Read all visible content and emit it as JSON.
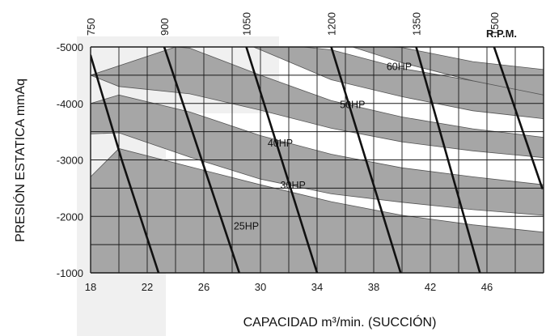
{
  "chart_data": {
    "type": "line",
    "xlabel": "CAPACIDAD m³/min. (SUCCIÓN)",
    "ylabel": "PRESIÓN ESTATICA mmAq",
    "xlim": [
      18,
      50
    ],
    "ylim": [
      -1000,
      -5000
    ],
    "x_ticks": [
      18,
      22,
      26,
      30,
      34,
      38,
      42,
      46
    ],
    "x_tick_labels": [
      "18",
      "22",
      "26",
      "30",
      "34",
      "38",
      "42",
      "46"
    ],
    "y_ticks": [
      -1000,
      -2000,
      -3000,
      -4000,
      -5000
    ],
    "y_tick_labels": [
      "-1000",
      "-2000",
      "-3000",
      "-4000",
      "-5000"
    ],
    "rpm_label": "R.P.M.",
    "rpm_series": [
      {
        "name": "750",
        "points": [
          [
            18.0,
            -4850
          ],
          [
            20.2,
            -3000
          ],
          [
            22.8,
            -1000
          ]
        ]
      },
      {
        "name": "900",
        "points": [
          [
            23.2,
            -5000
          ],
          [
            28.5,
            -1000
          ]
        ]
      },
      {
        "name": "1050",
        "points": [
          [
            29.0,
            -5000
          ],
          [
            34.0,
            -1000
          ]
        ]
      },
      {
        "name": "1200",
        "points": [
          [
            35.0,
            -5000
          ],
          [
            39.9,
            -1000
          ]
        ]
      },
      {
        "name": "1350",
        "points": [
          [
            41.0,
            -5000
          ],
          [
            45.5,
            -1000
          ]
        ]
      },
      {
        "name": "1500",
        "points": [
          [
            46.5,
            -5000
          ],
          [
            49.9,
            -2500
          ]
        ]
      }
    ],
    "hp_bands": [
      {
        "name": "25HP",
        "label_at": [
          29.0,
          -1770
        ],
        "upper": [
          [
            18.0,
            -2700
          ],
          [
            20.0,
            -3200
          ],
          [
            25.0,
            -2880
          ],
          [
            30.0,
            -2560
          ],
          [
            35.0,
            -2260
          ],
          [
            40.0,
            -2020
          ],
          [
            45.0,
            -1850
          ],
          [
            50.0,
            -1720
          ]
        ],
        "lower": [
          [
            18.0,
            -1000
          ],
          [
            50.0,
            -1000
          ]
        ]
      },
      {
        "name": "30HP",
        "label_at": [
          32.3,
          -2490
        ],
        "upper": [
          [
            18.0,
            -4000
          ],
          [
            20.0,
            -4150
          ],
          [
            25.0,
            -3850
          ],
          [
            30.0,
            -3430
          ],
          [
            35.0,
            -3100
          ],
          [
            40.0,
            -2860
          ],
          [
            45.0,
            -2700
          ],
          [
            50.0,
            -2560
          ]
        ],
        "lower": [
          [
            18.0,
            -3460
          ],
          [
            20.0,
            -3480
          ],
          [
            25.0,
            -3050
          ],
          [
            30.0,
            -2660
          ],
          [
            35.0,
            -2400
          ],
          [
            40.0,
            -2250
          ],
          [
            45.0,
            -2120
          ],
          [
            50.0,
            -2020
          ]
        ]
      },
      {
        "name": "40HP",
        "label_at": [
          31.4,
          -3240
        ],
        "upper": [
          [
            24.0,
            -5000
          ],
          [
            25.0,
            -4980
          ],
          [
            30.0,
            -4500
          ],
          [
            35.0,
            -4050
          ],
          [
            40.0,
            -3760
          ],
          [
            45.0,
            -3550
          ],
          [
            50.0,
            -3400
          ]
        ],
        "lower": [
          [
            18.0,
            -4500
          ],
          [
            20.0,
            -4300
          ],
          [
            25.0,
            -4170
          ],
          [
            30.0,
            -3880
          ],
          [
            35.0,
            -3560
          ],
          [
            40.0,
            -3320
          ],
          [
            45.0,
            -3160
          ],
          [
            50.0,
            -3040
          ]
        ]
      },
      {
        "name": "50HP",
        "label_at": [
          36.5,
          -3920
        ],
        "upper": [
          [
            33.0,
            -5000
          ],
          [
            35.0,
            -4950
          ],
          [
            40.0,
            -4620
          ],
          [
            45.0,
            -4400
          ],
          [
            50.0,
            -4270
          ]
        ],
        "lower": [
          [
            29.5,
            -5000
          ],
          [
            30.0,
            -4950
          ],
          [
            35.0,
            -4420
          ],
          [
            40.0,
            -4120
          ],
          [
            45.0,
            -3870
          ],
          [
            50.0,
            -3730
          ]
        ]
      },
      {
        "name": "60HP",
        "label_at": [
          39.8,
          -4590
        ],
        "upper": [
          [
            39.0,
            -5000
          ],
          [
            40.0,
            -4990
          ],
          [
            45.0,
            -4740
          ],
          [
            50.0,
            -4600
          ]
        ],
        "lower": [
          [
            36.5,
            -5000
          ],
          [
            40.0,
            -4720
          ],
          [
            45.0,
            -4400
          ],
          [
            50.0,
            -4150
          ]
        ]
      }
    ],
    "grid": true,
    "colors": {
      "band": "#a6a6a6",
      "curve": "#111111",
      "grid": "#1a1a1a",
      "background": "#ffffff",
      "watermark": "#f0f0f0"
    }
  }
}
